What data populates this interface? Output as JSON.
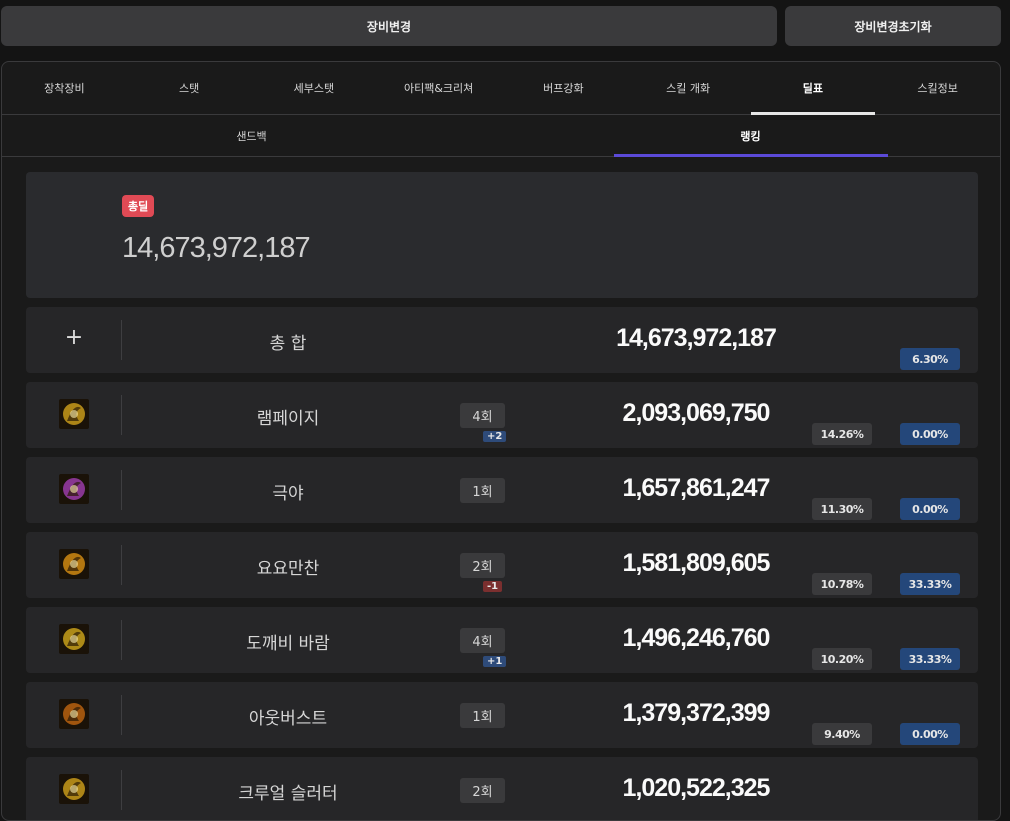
{
  "top": {
    "change_equipment": "장비변경",
    "reset_equipment": "장비변경초기화"
  },
  "tabs": [
    "장착장비",
    "스탯",
    "세부스탯",
    "아티팩&크리쳐",
    "버프강화",
    "스킬 개화",
    "딜표",
    "스킬정보"
  ],
  "active_tab": 6,
  "subtabs": [
    "샌드백",
    "랭킹"
  ],
  "active_subtab": 1,
  "summary": {
    "badge": "총딜",
    "total": "14,673,972,187"
  },
  "total_row": {
    "icon": "plus-icon",
    "name": "총 합",
    "damage": "14,673,972,187",
    "pct2": "6.30%"
  },
  "skills": [
    {
      "name": "램페이지",
      "count": "4회",
      "delta": "+2",
      "delta_type": "pos",
      "damage": "2,093,069,750",
      "pct1": "14.26%",
      "pct2": "0.00%",
      "icon": "rampage-skill-icon",
      "color": "#c89a1a"
    },
    {
      "name": "극야",
      "count": "1회",
      "delta": "",
      "delta_type": "",
      "damage": "1,657,861,247",
      "pct1": "11.30%",
      "pct2": "0.00%",
      "icon": "polar-night-skill-icon",
      "color": "#9b3ca8"
    },
    {
      "name": "요요만찬",
      "count": "2회",
      "delta": "-1",
      "delta_type": "neg",
      "damage": "1,581,809,605",
      "pct1": "10.78%",
      "pct2": "33.33%",
      "icon": "yoyo-feast-skill-icon",
      "color": "#d08a12"
    },
    {
      "name": "도깨비 바람",
      "count": "4회",
      "delta": "+1",
      "delta_type": "pos",
      "damage": "1,496,246,760",
      "pct1": "10.20%",
      "pct2": "33.33%",
      "icon": "dokkaebi-wind-skill-icon",
      "color": "#c8a01a"
    },
    {
      "name": "아웃버스트",
      "count": "1회",
      "delta": "",
      "delta_type": "",
      "damage": "1,379,372,399",
      "pct1": "9.40%",
      "pct2": "0.00%",
      "icon": "outburst-skill-icon",
      "color": "#b8620f"
    },
    {
      "name": "크루얼 슬러터",
      "count": "2회",
      "delta": "",
      "delta_type": "",
      "damage": "1,020,522,325",
      "pct1": "",
      "pct2": "",
      "icon": "cruel-slaughter-skill-icon",
      "color": "#c89a1a"
    }
  ]
}
